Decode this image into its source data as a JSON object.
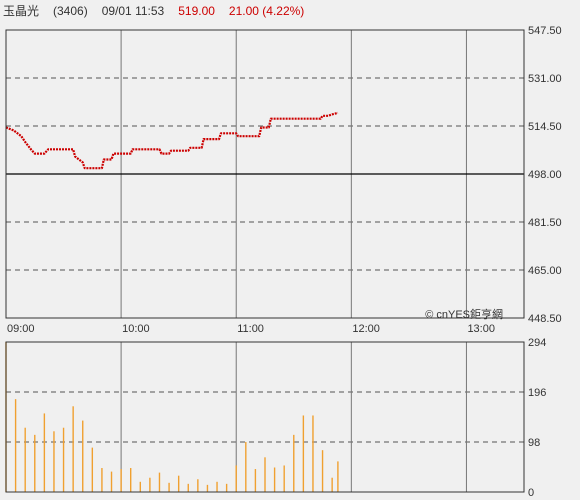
{
  "header": {
    "name": "玉晶光",
    "code": "(3406)",
    "datetime": "09/01 11:53",
    "price": "519.00",
    "change": "21.00 (4.22%)"
  },
  "colors": {
    "up": "#cc0000",
    "volume_bar": "#f0a030",
    "reference_line": "#000000"
  },
  "watermark": "© cnYES鉅亨網",
  "chart_data": [
    {
      "type": "line",
      "xlabel": "",
      "ylabel": "",
      "x_ticks": [
        "09:00",
        "10:00",
        "11:00",
        "12:00",
        "13:00"
      ],
      "y_ticks": [
        547.5,
        531.0,
        514.5,
        498.0,
        481.5,
        465.0,
        448.5
      ],
      "ylim": [
        448.5,
        547.5
      ],
      "reference_price": 498.0,
      "grid": true,
      "series": [
        {
          "values": [
            [
              "09:00",
              514.0
            ],
            [
              "09:04",
              513.0
            ],
            [
              "09:08",
              511.0
            ],
            [
              "09:10",
              509.0
            ],
            [
              "09:13",
              506.5
            ],
            [
              "09:15",
              505.0
            ],
            [
              "09:20",
              505.0
            ],
            [
              "09:22",
              506.5
            ],
            [
              "09:35",
              506.5
            ],
            [
              "09:36",
              504.0
            ],
            [
              "09:40",
              502.0
            ],
            [
              "09:41",
              500.0
            ],
            [
              "09:50",
              500.0
            ],
            [
              "09:51",
              503.0
            ],
            [
              "09:55",
              503.0
            ],
            [
              "09:56",
              505.0
            ],
            [
              "10:05",
              505.0
            ],
            [
              "10:06",
              506.5
            ],
            [
              "10:20",
              506.5
            ],
            [
              "10:21",
              505.0
            ],
            [
              "10:25",
              505.0
            ],
            [
              "10:26",
              506.0
            ],
            [
              "10:35",
              506.0
            ],
            [
              "10:36",
              507.0
            ],
            [
              "10:42",
              507.0
            ],
            [
              "10:43",
              510.0
            ],
            [
              "10:51",
              510.0
            ],
            [
              "10:52",
              512.0
            ],
            [
              "11:00",
              512.0
            ],
            [
              "11:01",
              511.0
            ],
            [
              "11:12",
              511.0
            ],
            [
              "11:13",
              514.0
            ],
            [
              "11:17",
              514.0
            ],
            [
              "11:18",
              517.0
            ],
            [
              "11:44",
              517.0
            ],
            [
              "11:45",
              518.0
            ],
            [
              "11:48",
              518.0
            ],
            [
              "11:50",
              518.5
            ],
            [
              "11:53",
              519.0
            ]
          ]
        }
      ]
    },
    {
      "type": "bar",
      "xlabel": "",
      "ylabel": "",
      "y_ticks": [
        294,
        196,
        98,
        0
      ],
      "ylim": [
        0,
        294
      ],
      "grid": true,
      "series": [
        {
          "values": [
            [
              "09:00",
              294
            ],
            [
              "09:05",
              182
            ],
            [
              "09:10",
              126
            ],
            [
              "09:15",
              112
            ],
            [
              "09:20",
              154
            ],
            [
              "09:25",
              119
            ],
            [
              "09:30",
              126
            ],
            [
              "09:35",
              168
            ],
            [
              "09:40",
              140
            ],
            [
              "09:45",
              87
            ],
            [
              "09:50",
              47
            ],
            [
              "09:55",
              40
            ],
            [
              "10:00",
              45
            ],
            [
              "10:05",
              47
            ],
            [
              "10:10",
              20
            ],
            [
              "10:15",
              28
            ],
            [
              "10:20",
              38
            ],
            [
              "10:25",
              18
            ],
            [
              "10:30",
              32
            ],
            [
              "10:35",
              16
            ],
            [
              "10:40",
              25
            ],
            [
              "10:45",
              14
            ],
            [
              "10:50",
              20
            ],
            [
              "10:55",
              16
            ],
            [
              "11:00",
              52
            ],
            [
              "11:05",
              98
            ],
            [
              "11:10",
              45
            ],
            [
              "11:15",
              68
            ],
            [
              "11:20",
              48
            ],
            [
              "11:25",
              52
            ],
            [
              "11:30",
              112
            ],
            [
              "11:35",
              150
            ],
            [
              "11:40",
              150
            ],
            [
              "11:45",
              82
            ],
            [
              "11:50",
              28
            ],
            [
              "11:53",
              60
            ]
          ]
        }
      ]
    }
  ]
}
